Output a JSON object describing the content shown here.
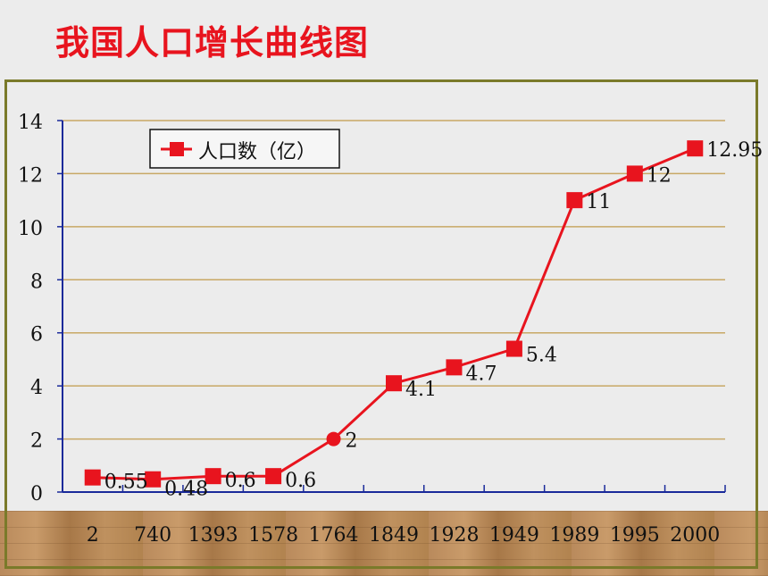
{
  "title": "我国人口增长曲线图",
  "chart_data": {
    "type": "line",
    "categories": [
      "2",
      "740",
      "1393",
      "1578",
      "1764",
      "1849",
      "1928",
      "1949",
      "1989",
      "1995",
      "2000"
    ],
    "series": [
      {
        "name": "人口数（亿）",
        "values": [
          0.55,
          0.48,
          0.6,
          0.6,
          2,
          4.1,
          4.7,
          5.4,
          11,
          12,
          12.95
        ],
        "labels": [
          "0.55",
          "0.48",
          "0.6",
          "0.6",
          "2",
          "4.1",
          "4.7",
          "5.4",
          "11",
          "12",
          "12.95"
        ],
        "color": "#e8141e"
      }
    ],
    "ylim": [
      0,
      14
    ],
    "yticks": [
      "0",
      "2",
      "4",
      "6",
      "8",
      "10",
      "12",
      "14"
    ],
    "grid": true,
    "legend": "top-left",
    "colors": {
      "grid": "#c8a865",
      "axis": "#1a2a9a",
      "line": "#e8141e"
    }
  }
}
